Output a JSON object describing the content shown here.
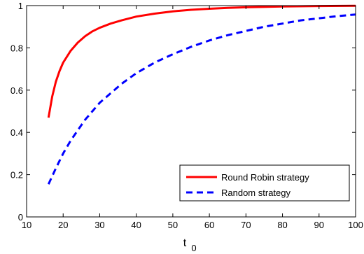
{
  "chart_data": {
    "type": "line",
    "title": "",
    "xlabel": "t",
    "xlabel_subscript": "0",
    "ylabel": "",
    "xlim": [
      10,
      100
    ],
    "ylim": [
      0,
      1
    ],
    "xticks": [
      10,
      20,
      30,
      40,
      50,
      60,
      70,
      80,
      90,
      100
    ],
    "xtick_labels": [
      "10",
      "20",
      "30",
      "40",
      "50",
      "60",
      "70",
      "80",
      "90",
      "100"
    ],
    "yticks": [
      0,
      0.2,
      0.4,
      0.6,
      0.8,
      1
    ],
    "ytick_labels": [
      "0",
      "0.2",
      "0.4",
      "0.6",
      "0.8",
      "1"
    ],
    "grid": false,
    "legend_position": "bottom-right",
    "series": [
      {
        "name": "Round Robin strategy",
        "color": "#ff0000",
        "dash": "solid",
        "x": [
          16,
          17,
          18,
          19,
          20,
          22,
          24,
          26,
          28,
          30,
          33,
          36,
          40,
          45,
          50,
          55,
          60,
          65,
          70,
          80,
          90,
          100
        ],
        "y": [
          0.47,
          0.57,
          0.64,
          0.69,
          0.73,
          0.785,
          0.825,
          0.855,
          0.878,
          0.895,
          0.915,
          0.93,
          0.948,
          0.962,
          0.973,
          0.98,
          0.985,
          0.989,
          0.992,
          0.996,
          0.998,
          0.999
        ]
      },
      {
        "name": "Random strategy",
        "color": "#0000ff",
        "dash": "dashed",
        "x": [
          16,
          18,
          20,
          22,
          24,
          26,
          28,
          30,
          33,
          36,
          40,
          45,
          50,
          55,
          60,
          65,
          70,
          75,
          80,
          85,
          90,
          95,
          100
        ],
        "y": [
          0.155,
          0.23,
          0.3,
          0.36,
          0.41,
          0.46,
          0.5,
          0.54,
          0.585,
          0.63,
          0.68,
          0.73,
          0.77,
          0.805,
          0.835,
          0.86,
          0.88,
          0.9,
          0.915,
          0.93,
          0.94,
          0.95,
          0.958
        ]
      }
    ]
  }
}
